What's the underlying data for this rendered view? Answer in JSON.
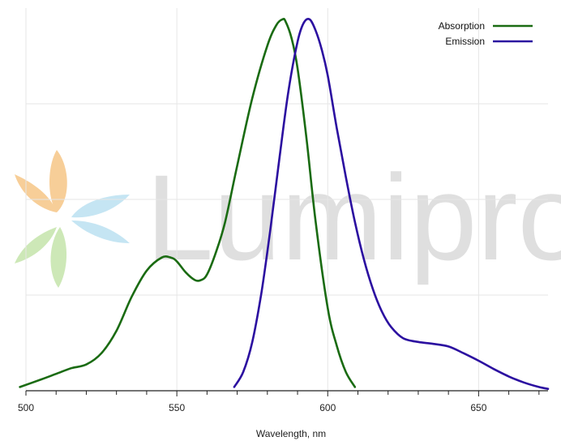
{
  "watermark": {
    "text": "Lumiprobe"
  },
  "colors": {
    "absorption": "#1a6b12",
    "emission": "#2b0fa0",
    "grid": "#e6e6e6",
    "axis": "#222222",
    "watermark_text": "#dcdcdc",
    "watermark_petals": [
      "#f7c98d",
      "#bfe3f2",
      "#c8e6b0"
    ]
  },
  "chart_data": {
    "type": "line",
    "title": "",
    "xlabel": "Wavelength, nm",
    "ylabel": "",
    "xlim": [
      500,
      673
    ],
    "ylim": [
      0,
      1.02
    ],
    "xticks": [
      500,
      550,
      600,
      650
    ],
    "xtick_labels": [
      "500",
      "550",
      "600",
      "650"
    ],
    "minor_xtick_step": 10,
    "grid": true,
    "legend_position": "top-right",
    "series": [
      {
        "name": "Absorption",
        "color": "#1a6b12",
        "x": [
          498,
          505,
          510,
          515,
          520,
          525,
          530,
          535,
          540,
          545,
          548,
          550,
          553,
          556,
          558,
          560,
          563,
          566,
          570,
          575,
          580,
          583,
          585,
          586,
          588,
          590,
          593,
          596,
          600,
          603,
          606,
          609
        ],
        "y": [
          0.01,
          0.03,
          0.045,
          0.06,
          0.07,
          0.1,
          0.16,
          0.25,
          0.32,
          0.355,
          0.355,
          0.345,
          0.315,
          0.295,
          0.295,
          0.31,
          0.37,
          0.45,
          0.6,
          0.78,
          0.92,
          0.975,
          0.99,
          0.985,
          0.94,
          0.86,
          0.67,
          0.45,
          0.22,
          0.12,
          0.05,
          0.01
        ]
      },
      {
        "name": "Emission",
        "color": "#2b0fa0",
        "x": [
          569,
          572,
          575,
          578,
          581,
          584,
          587,
          590,
          592,
          594,
          596,
          598,
          600,
          603,
          606,
          609,
          612,
          615,
          618,
          621,
          625,
          630,
          635,
          640,
          645,
          650,
          655,
          660,
          665,
          670,
          673
        ],
        "y": [
          0.01,
          0.05,
          0.13,
          0.26,
          0.43,
          0.62,
          0.8,
          0.93,
          0.98,
          0.99,
          0.96,
          0.91,
          0.84,
          0.7,
          0.57,
          0.45,
          0.35,
          0.27,
          0.21,
          0.17,
          0.14,
          0.13,
          0.125,
          0.118,
          0.1,
          0.08,
          0.058,
          0.038,
          0.022,
          0.01,
          0.005
        ]
      }
    ]
  }
}
